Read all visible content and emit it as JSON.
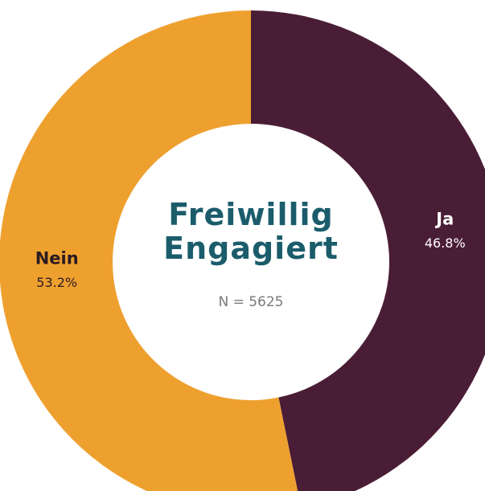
{
  "chart_data": {
    "type": "donut",
    "title": "Freiwillig Engagiert",
    "subtitle": "N = 5625",
    "categories": [
      "Ja",
      "Nein"
    ],
    "values": [
      46.8,
      53.2
    ],
    "value_labels": [
      "46.8%",
      "53.2%"
    ],
    "colors": [
      "#4a1d36",
      "#eea02f"
    ]
  }
}
